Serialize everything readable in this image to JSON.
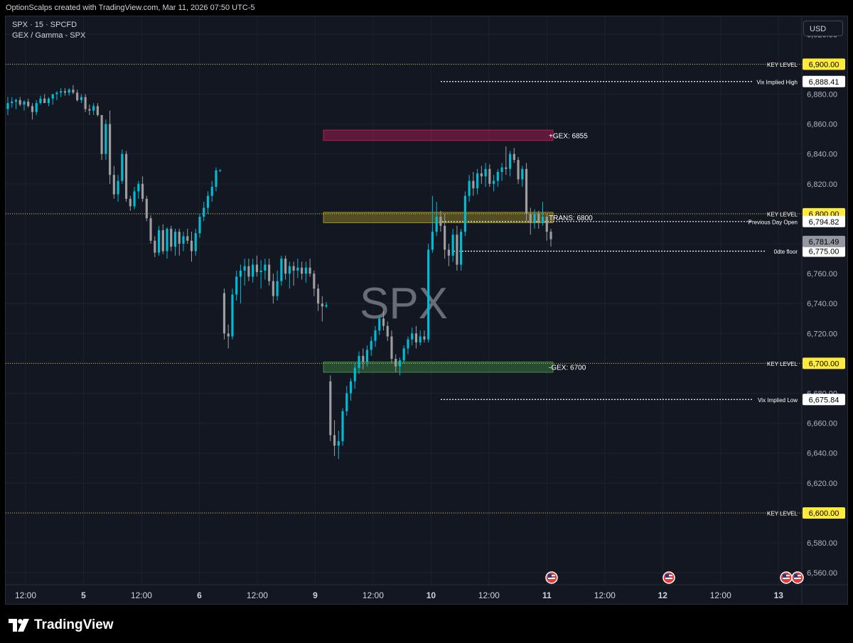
{
  "header": {
    "credit": "OptionScalps created with TradingView.com, Mar 11, 2026 07:50 UTC-5"
  },
  "legend": {
    "symbol_line": "SPX · 15 · SPCFD",
    "indicator_line": "GEX / Gamma - SPX"
  },
  "currency_button": "USD",
  "watermark": "SPX",
  "footer": {
    "brand": "TradingView",
    "logo_icon": "tradingview-logo-icon"
  },
  "colors": {
    "background": "#131722",
    "bull": "#00bcd4",
    "bear": "#9e9e9e",
    "key_level": "#ffeb3b",
    "gex_negative": "#4caf50",
    "gex_positive": "#e91e63",
    "transition": "#c9b326"
  },
  "chart_data": {
    "type": "candlestick",
    "symbol": "SPX",
    "interval": "15",
    "ylim": [
      6552,
      6932
    ],
    "y_ticks": [
      6560,
      6580,
      6600,
      6620,
      6640,
      6660,
      6680,
      6700,
      6720,
      6740,
      6760,
      6780,
      6800,
      6820,
      6840,
      6860,
      6880,
      6900,
      6920
    ],
    "y_tick_labels": [
      "6,560.00",
      "6,580.00",
      "6,600.00",
      "6,620.00",
      "6,640.00",
      "6,660.00",
      "6,680.00",
      "6,700.00",
      "6,720.00",
      "6,740.00",
      "6,760.00",
      "6,780.00",
      "6,800.00",
      "6,820.00",
      "6,840.00",
      "6,860.00",
      "6,880.00",
      "6,900.00",
      "6,920.00"
    ],
    "x_ticks": [
      {
        "label": "12:00",
        "bold": false
      },
      {
        "label": "5",
        "bold": true
      },
      {
        "label": "12:00",
        "bold": false
      },
      {
        "label": "6",
        "bold": true
      },
      {
        "label": "12:00",
        "bold": false
      },
      {
        "label": "9",
        "bold": true
      },
      {
        "label": "12:00",
        "bold": false
      },
      {
        "label": "10",
        "bold": true
      },
      {
        "label": "12:00",
        "bold": false
      },
      {
        "label": "11",
        "bold": true
      },
      {
        "label": "12:00",
        "bold": false
      },
      {
        "label": "12",
        "bold": true
      },
      {
        "label": "12:00",
        "bold": false
      },
      {
        "label": "13",
        "bold": true
      }
    ],
    "last_price": {
      "value": 6781.49,
      "label": "6,781.49"
    },
    "horizontal_levels": [
      {
        "name": "KEY LEVEL",
        "value": 6900,
        "label": "6,900.00",
        "style": "key"
      },
      {
        "name": "Vix Implied High",
        "value": 6888.41,
        "label": "6,888.41",
        "style": "dotted"
      },
      {
        "name": "KEY LEVEL",
        "value": 6800,
        "label": "6,800.00",
        "style": "key"
      },
      {
        "name": "Previous Day Open",
        "value": 6794.82,
        "label": "6,794.82",
        "style": "dotted"
      },
      {
        "name": "0dte floor",
        "value": 6775,
        "label": "6,775.00",
        "style": "dotted"
      },
      {
        "name": "KEY LEVEL",
        "value": 6700,
        "label": "6,700.00",
        "style": "key"
      },
      {
        "name": "Vix Implied Low",
        "value": 6675.84,
        "label": "6,675.84",
        "style": "dotted"
      },
      {
        "name": "KEY LEVEL",
        "value": 6600,
        "label": "6,600.00",
        "style": "key"
      }
    ],
    "zones": [
      {
        "label": "+GEX: 6855",
        "y_top": 6856,
        "y_bottom": 6849,
        "color": "#e91e63"
      },
      {
        "label": "TRANS: 6800",
        "y_top": 6801,
        "y_bottom": 6794,
        "color": "#c9b326"
      },
      {
        "label": "-GEX: 6700",
        "y_top": 6701,
        "y_bottom": 6694,
        "color": "#4caf50"
      }
    ],
    "event_markers": 4,
    "event_icon": "us-flag-icon",
    "candles": [
      [
        6870,
        6878,
        6866,
        6874
      ],
      [
        6874,
        6878,
        6871,
        6875
      ],
      [
        6875,
        6877,
        6870,
        6876
      ],
      [
        6876,
        6878,
        6872,
        6873
      ],
      [
        6873,
        6876,
        6869,
        6875
      ],
      [
        6875,
        6877,
        6871,
        6872
      ],
      [
        6872,
        6874,
        6863,
        6868
      ],
      [
        6868,
        6876,
        6866,
        6874
      ],
      [
        6874,
        6879,
        6873,
        6877
      ],
      [
        6877,
        6880,
        6875,
        6874
      ],
      [
        6874,
        6878,
        6872,
        6877
      ],
      [
        6877,
        6880,
        6873,
        6880
      ],
      [
        6880,
        6882,
        6876,
        6881
      ],
      [
        6881,
        6884,
        6878,
        6882
      ],
      [
        6882,
        6884,
        6879,
        6881
      ],
      [
        6881,
        6884,
        6879,
        6883
      ],
      [
        6883,
        6886,
        6880,
        6881
      ],
      [
        6881,
        6883,
        6875,
        6876
      ],
      [
        6876,
        6880,
        6874,
        6878
      ],
      [
        6878,
        6880,
        6868,
        6870
      ],
      [
        6870,
        6873,
        6866,
        6869
      ],
      [
        6869,
        6874,
        6866,
        6872
      ],
      [
        6872,
        6874,
        6865,
        6866
      ],
      [
        6866,
        6866,
        6836,
        6840
      ],
      [
        6840,
        6863,
        6836,
        6860
      ],
      [
        6860,
        6869,
        6820,
        6826
      ],
      [
        6826,
        6832,
        6810,
        6813
      ],
      [
        6813,
        6826,
        6808,
        6822
      ],
      [
        6822,
        6843,
        6820,
        6840
      ],
      [
        6840,
        6842,
        6808,
        6810
      ],
      [
        6810,
        6812,
        6802,
        6805
      ],
      [
        6805,
        6818,
        6803,
        6815
      ],
      [
        6815,
        6822,
        6810,
        6820
      ],
      [
        6820,
        6825,
        6808,
        6810
      ],
      [
        6810,
        6812,
        6795,
        6797
      ],
      [
        6797,
        6799,
        6780,
        6782
      ],
      [
        6782,
        6785,
        6771,
        6774
      ],
      [
        6774,
        6792,
        6772,
        6789
      ],
      [
        6789,
        6793,
        6773,
        6775
      ],
      [
        6775,
        6791,
        6770,
        6790
      ],
      [
        6790,
        6792,
        6775,
        6778
      ],
      [
        6778,
        6790,
        6772,
        6788
      ],
      [
        6788,
        6790,
        6772,
        6780
      ],
      [
        6780,
        6788,
        6775,
        6785
      ],
      [
        6785,
        6790,
        6780,
        6782
      ],
      [
        6782,
        6788,
        6768,
        6775
      ],
      [
        6775,
        6790,
        6772,
        6787
      ],
      [
        6787,
        6800,
        6784,
        6798
      ],
      [
        6798,
        6808,
        6795,
        6804
      ],
      [
        6804,
        6815,
        6800,
        6812
      ],
      [
        6812,
        6822,
        6808,
        6818
      ],
      [
        6818,
        6831,
        6815,
        6829
      ],
      [
        6829,
        6830,
        6828,
        6829
      ],
      [
        6747,
        6750,
        6716,
        6720
      ],
      [
        6720,
        6726,
        6710,
        6718
      ],
      [
        6718,
        6750,
        6716,
        6746
      ],
      [
        6746,
        6762,
        6742,
        6758
      ],
      [
        6758,
        6766,
        6740,
        6762
      ],
      [
        6762,
        6770,
        6752,
        6765
      ],
      [
        6765,
        6770,
        6755,
        6758
      ],
      [
        6758,
        6770,
        6754,
        6766
      ],
      [
        6766,
        6772,
        6758,
        6761
      ],
      [
        6761,
        6769,
        6750,
        6762
      ],
      [
        6762,
        6770,
        6756,
        6766
      ],
      [
        6766,
        6770,
        6752,
        6755
      ],
      [
        6755,
        6760,
        6740,
        6745
      ],
      [
        6745,
        6762,
        6742,
        6755
      ],
      [
        6755,
        6772,
        6752,
        6770
      ],
      [
        6770,
        6772,
        6756,
        6760
      ],
      [
        6760,
        6768,
        6750,
        6765
      ],
      [
        6765,
        6768,
        6752,
        6762
      ],
      [
        6762,
        6770,
        6757,
        6764
      ],
      [
        6764,
        6768,
        6756,
        6760
      ],
      [
        6760,
        6768,
        6754,
        6764
      ],
      [
        6764,
        6770,
        6758,
        6760
      ],
      [
        6760,
        6762,
        6745,
        6750
      ],
      [
        6750,
        6753,
        6735,
        6740
      ],
      [
        6740,
        6745,
        6728,
        6738
      ],
      [
        6738,
        6741,
        6737,
        6739
      ],
      [
        6688,
        6692,
        6648,
        6652
      ],
      [
        6652,
        6662,
        6638,
        6645
      ],
      [
        6645,
        6655,
        6636,
        6648
      ],
      [
        6648,
        6670,
        6645,
        6668
      ],
      [
        6668,
        6685,
        6665,
        6680
      ],
      [
        6680,
        6690,
        6675,
        6688
      ],
      [
        6688,
        6700,
        6683,
        6697
      ],
      [
        6697,
        6708,
        6693,
        6705
      ],
      [
        6705,
        6710,
        6696,
        6701
      ],
      [
        6701,
        6712,
        6698,
        6709
      ],
      [
        6709,
        6718,
        6705,
        6715
      ],
      [
        6715,
        6725,
        6711,
        6722
      ],
      [
        6722,
        6732,
        6719,
        6730
      ],
      [
        6730,
        6735,
        6722,
        6725
      ],
      [
        6725,
        6728,
        6715,
        6718
      ],
      [
        6718,
        6722,
        6700,
        6703
      ],
      [
        6703,
        6706,
        6694,
        6698
      ],
      [
        6698,
        6704,
        6692,
        6702
      ],
      [
        6702,
        6712,
        6700,
        6710
      ],
      [
        6710,
        6718,
        6706,
        6716
      ],
      [
        6716,
        6724,
        6712,
        6720
      ],
      [
        6720,
        6725,
        6710,
        6714
      ],
      [
        6714,
        6722,
        6712,
        6718
      ],
      [
        6718,
        6722,
        6714,
        6716
      ],
      [
        6716,
        6780,
        6714,
        6776
      ],
      [
        6776,
        6812,
        6774,
        6788
      ],
      [
        6788,
        6808,
        6785,
        6798
      ],
      [
        6798,
        6802,
        6788,
        6792
      ],
      [
        6792,
        6800,
        6770,
        6776
      ],
      [
        6776,
        6780,
        6765,
        6772
      ],
      [
        6772,
        6790,
        6768,
        6786
      ],
      [
        6786,
        6792,
        6762,
        6766
      ],
      [
        6766,
        6790,
        6762,
        6788
      ],
      [
        6788,
        6815,
        6785,
        6812
      ],
      [
        6812,
        6826,
        6808,
        6822
      ],
      [
        6822,
        6828,
        6812,
        6817
      ],
      [
        6817,
        6830,
        6813,
        6827
      ],
      [
        6827,
        6832,
        6820,
        6825
      ],
      [
        6825,
        6834,
        6818,
        6830
      ],
      [
        6830,
        6833,
        6818,
        6820
      ],
      [
        6820,
        6826,
        6815,
        6822
      ],
      [
        6822,
        6830,
        6818,
        6828
      ],
      [
        6828,
        6834,
        6822,
        6831
      ],
      [
        6831,
        6845,
        6826,
        6830
      ],
      [
        6830,
        6842,
        6825,
        6840
      ],
      [
        6840,
        6844,
        6834,
        6836
      ],
      [
        6836,
        6838,
        6820,
        6823
      ],
      [
        6823,
        6832,
        6818,
        6830
      ],
      [
        6830,
        6834,
        6795,
        6800
      ],
      [
        6800,
        6804,
        6786,
        6794
      ],
      [
        6794,
        6803,
        6790,
        6800
      ],
      [
        6800,
        6802,
        6790,
        6794
      ],
      [
        6794,
        6808,
        6792,
        6798
      ],
      [
        6798,
        6800,
        6782,
        6788
      ],
      [
        6788,
        6790,
        6778,
        6783
      ]
    ]
  }
}
